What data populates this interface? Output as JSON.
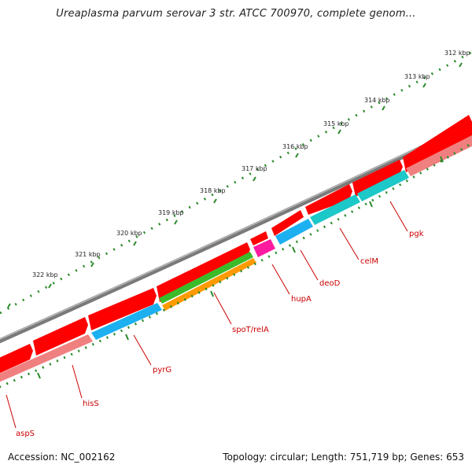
{
  "title": "Ureaplasma parvum serovar 3 str. ATCC 700970, complete genom...",
  "footer": {
    "accession": "Accession: NC_002162",
    "summary": "Topology: circular; Length: 751,719 bp; Genes: 653"
  },
  "kbp_ticks": [
    "312 kbp",
    "313 kbp",
    "314 kbp",
    "315 kbp",
    "316 kbp",
    "317 kbp",
    "318 kbp",
    "319 kbp",
    "320 kbp",
    "321 kbp",
    "322 kbp"
  ],
  "genes": [
    "pgk",
    "celM",
    "deoD",
    "hupA",
    "spoT/relA",
    "pyrG",
    "hisS",
    "aspS"
  ],
  "colors": {
    "backbone": "#7a7a7a",
    "cds": "#ff0000",
    "gene_track": "#f08080",
    "blue": "#1cb0f0",
    "teal": "#1cc8c8",
    "green": "#3cbb2a",
    "orange": "#ff9a00",
    "magenta": "#ff1aa0",
    "ticks": "#2a8a2a",
    "label": "#cc0000"
  }
}
